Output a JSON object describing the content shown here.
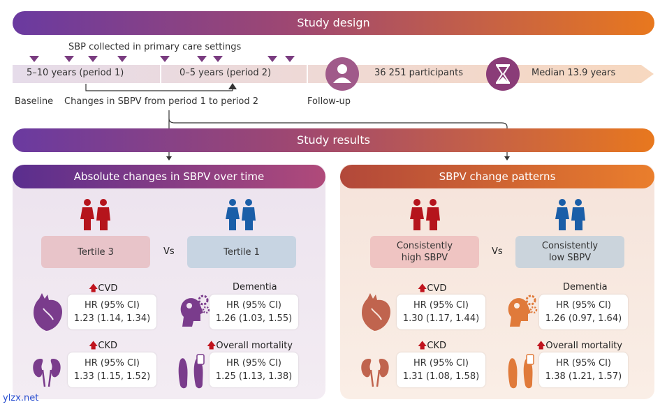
{
  "study_design": {
    "title": "Study design",
    "sbp_collected": "SBP collected in primary care settings",
    "period1": "5–10 years (period 1)",
    "period2": "0–5 years (period 2)",
    "participants": "36 251 participants",
    "median": "Median 13.9 years",
    "baseline": "Baseline",
    "changes": "Changes in SBPV from period 1 to period 2",
    "followup": "Follow-up"
  },
  "study_results": {
    "title": "Study results"
  },
  "left_panel": {
    "title": "Absolute changes in SBPV over time",
    "group_a": "Tertile 3",
    "vs": "Vs",
    "group_b": "Tertile 1",
    "outcomes": [
      {
        "name": "CVD",
        "arrow": "🡅",
        "hr_label": "HR (95% CI)",
        "hr": "1.23 (1.14, 1.34)",
        "icon": "heart-icon"
      },
      {
        "name": "Dementia",
        "arrow": "",
        "hr_label": "HR (95% CI)",
        "hr": "1.26 (1.03, 1.55)",
        "icon": "brain-gears-icon"
      },
      {
        "name": "CKD",
        "arrow": "🡅",
        "hr_label": "HR (95% CI)",
        "hr": "1.33 (1.15, 1.52)",
        "icon": "kidney-icon"
      },
      {
        "name": "Overall mortality",
        "arrow": "🡅",
        "hr_label": "HR (95% CI)",
        "hr": "1.25 (1.13, 1.38)",
        "icon": "feet-tag-icon"
      }
    ]
  },
  "right_panel": {
    "title": "SBPV change patterns",
    "group_a": "Consistently high SBPV",
    "vs": "Vs",
    "group_b": "Consistently low SBPV",
    "outcomes": [
      {
        "name": "CVD",
        "arrow": "🡅",
        "hr_label": "HR (95% CI)",
        "hr": "1.30 (1.17, 1.44)",
        "icon": "heart-icon"
      },
      {
        "name": "Dementia",
        "arrow": "",
        "hr_label": "HR (95% CI)",
        "hr": "1.26 (0.97, 1.64)",
        "icon": "brain-gears-icon"
      },
      {
        "name": "CKD",
        "arrow": "🡅",
        "hr_label": "HR (95% CI)",
        "hr": "1.31 (1.08, 1.58)",
        "icon": "kidney-icon"
      },
      {
        "name": "Overall mortality",
        "arrow": "🡅",
        "hr_label": "HR (95% CI)",
        "hr": "1.38 (1.21, 1.57)",
        "icon": "feet-tag-icon"
      }
    ]
  },
  "footer": "ylzx.net",
  "colors": {
    "purple": "#6a3aa0",
    "orange": "#e8781e",
    "red": "#c0141e",
    "blue": "#1a5ea8"
  }
}
